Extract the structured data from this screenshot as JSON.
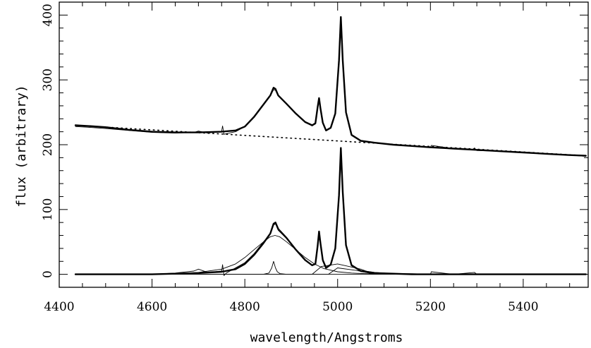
{
  "chart_data": {
    "type": "line",
    "title": "",
    "xlabel": "wavelength/Angstroms",
    "ylabel": "flux (arbitrary)",
    "xlim": [
      4400,
      5540
    ],
    "ylim": [
      -20,
      420
    ],
    "x_ticks": [
      4400,
      4600,
      4800,
      5000,
      5200,
      5400
    ],
    "y_ticks": [
      0,
      100,
      200,
      300,
      400
    ],
    "grid": false,
    "legend": "none",
    "series": [
      {
        "style": "observed spectrum, thin",
        "x": [
          4435,
          4460,
          4500,
          4550,
          4600,
          4650,
          4690,
          4700,
          4720,
          4750,
          4752,
          4755,
          4760,
          4780,
          4800,
          4820,
          4840,
          4855,
          4862,
          4866,
          4872,
          4890,
          4910,
          4930,
          4945,
          4952,
          4957,
          4960,
          4963,
          4968,
          4975,
          4985,
          4995,
          5003,
          5007,
          5011,
          5018,
          5030,
          5050,
          5080,
          5120,
          5160,
          5200,
          5202,
          5250,
          5290,
          5295,
          5300,
          5350,
          5400,
          5450,
          5500,
          5535
        ],
        "y": [
          228,
          227,
          225,
          222,
          219,
          218,
          219,
          221,
          218,
          221,
          229,
          216,
          217,
          220,
          228,
          243,
          262,
          275,
          285,
          284,
          275,
          263,
          248,
          235,
          229,
          232,
          258,
          270,
          255,
          233,
          222,
          226,
          248,
          330,
          393,
          330,
          250,
          215,
          206,
          203,
          200,
          198,
          196,
          199,
          194,
          192,
          195,
          191,
          190,
          188,
          186,
          184,
          182
        ]
      },
      {
        "style": "model fit, thick",
        "x": [
          4435,
          4460,
          4500,
          4550,
          4600,
          4650,
          4700,
          4750,
          4780,
          4800,
          4820,
          4840,
          4855,
          4862,
          4866,
          4872,
          4890,
          4910,
          4930,
          4945,
          4952,
          4957,
          4960,
          4963,
          4968,
          4975,
          4985,
          4995,
          5003,
          5007,
          5011,
          5018,
          5030,
          5050,
          5080,
          5120,
          5160,
          5200,
          5250,
          5300,
          5350,
          5400,
          5450,
          5500,
          5535
        ],
        "y": [
          230,
          229,
          227,
          223,
          220,
          219,
          219,
          220,
          222,
          228,
          243,
          262,
          276,
          288,
          286,
          276,
          263,
          248,
          235,
          230,
          233,
          258,
          272,
          256,
          234,
          222,
          226,
          248,
          330,
          397,
          330,
          250,
          215,
          206,
          203,
          200,
          198,
          196,
          194,
          192,
          190,
          188,
          186,
          184,
          183
        ]
      },
      {
        "style": "continuum, dotted",
        "x": [
          4435,
          5535
        ],
        "y": [
          230,
          183
        ]
      },
      {
        "style": "residual spectrum, thin",
        "x": [
          4435,
          4500,
          4600,
          4650,
          4690,
          4700,
          4720,
          4750,
          4752,
          4755,
          4760,
          4780,
          4800,
          4820,
          4840,
          4855,
          4862,
          4866,
          4872,
          4890,
          4910,
          4930,
          4945,
          4952,
          4957,
          4960,
          4963,
          4968,
          4975,
          4985,
          4995,
          5003,
          5007,
          5011,
          5018,
          5030,
          5050,
          5080,
          5120,
          5160,
          5200,
          5202,
          5250,
          5295,
          5300,
          5350,
          5400,
          5450,
          5500,
          5535
        ],
        "y": [
          0,
          0,
          0,
          2,
          5,
          8,
          3,
          5,
          15,
          -2,
          2,
          10,
          18,
          32,
          50,
          62,
          76,
          78,
          68,
          55,
          38,
          22,
          14,
          16,
          42,
          62,
          45,
          20,
          10,
          15,
          40,
          120,
          190,
          125,
          45,
          15,
          6,
          3,
          1,
          1,
          0,
          4,
          0,
          3,
          0,
          0,
          0,
          0,
          0,
          0
        ]
      },
      {
        "style": "total model, thick",
        "x": [
          4435,
          4500,
          4600,
          4650,
          4700,
          4750,
          4780,
          4800,
          4820,
          4840,
          4855,
          4862,
          4866,
          4872,
          4890,
          4910,
          4930,
          4945,
          4952,
          4957,
          4960,
          4963,
          4968,
          4975,
          4985,
          4995,
          5003,
          5007,
          5011,
          5018,
          5030,
          5050,
          5080,
          5120,
          5160,
          5200,
          5300,
          5400,
          5535
        ],
        "y": [
          0,
          0,
          0,
          1,
          2,
          4,
          8,
          16,
          30,
          48,
          63,
          78,
          80,
          70,
          56,
          38,
          22,
          14,
          16,
          44,
          66,
          48,
          22,
          10,
          15,
          40,
          122,
          195,
          127,
          45,
          14,
          5,
          2,
          1,
          0,
          0,
          0,
          0,
          0
        ]
      },
      {
        "style": "broad component, thin",
        "x": [
          4435,
          4550,
          4650,
          4700,
          4750,
          4780,
          4800,
          4820,
          4840,
          4855,
          4865,
          4875,
          4890,
          4910,
          4930,
          4950,
          4970,
          5000,
          5030,
          5060,
          5100,
          5150,
          5200,
          5300,
          5535
        ],
        "y": [
          0,
          0,
          1,
          3,
          8,
          16,
          26,
          38,
          50,
          58,
          60,
          58,
          50,
          38,
          26,
          16,
          9,
          4,
          2,
          1,
          0,
          0,
          0,
          0,
          0
        ]
      },
      {
        "style": "narrow component, thin",
        "x": [
          4435,
          4840,
          4852,
          4858,
          4862,
          4866,
          4870,
          4876,
          4890,
          5535
        ],
        "y": [
          0,
          0,
          2,
          10,
          20,
          10,
          4,
          1,
          0,
          0
        ]
      },
      {
        "style": "linear component, thin",
        "x": [
          4435,
          4945,
          4965,
          5000,
          5050,
          5080,
          5535
        ],
        "y": [
          0,
          0,
          12,
          16,
          8,
          0,
          0
        ]
      },
      {
        "style": "linear component, thin",
        "x": [
          4435,
          4980,
          5000,
          5040,
          5080,
          5535
        ],
        "y": [
          0,
          0,
          10,
          6,
          0,
          0
        ]
      }
    ]
  }
}
